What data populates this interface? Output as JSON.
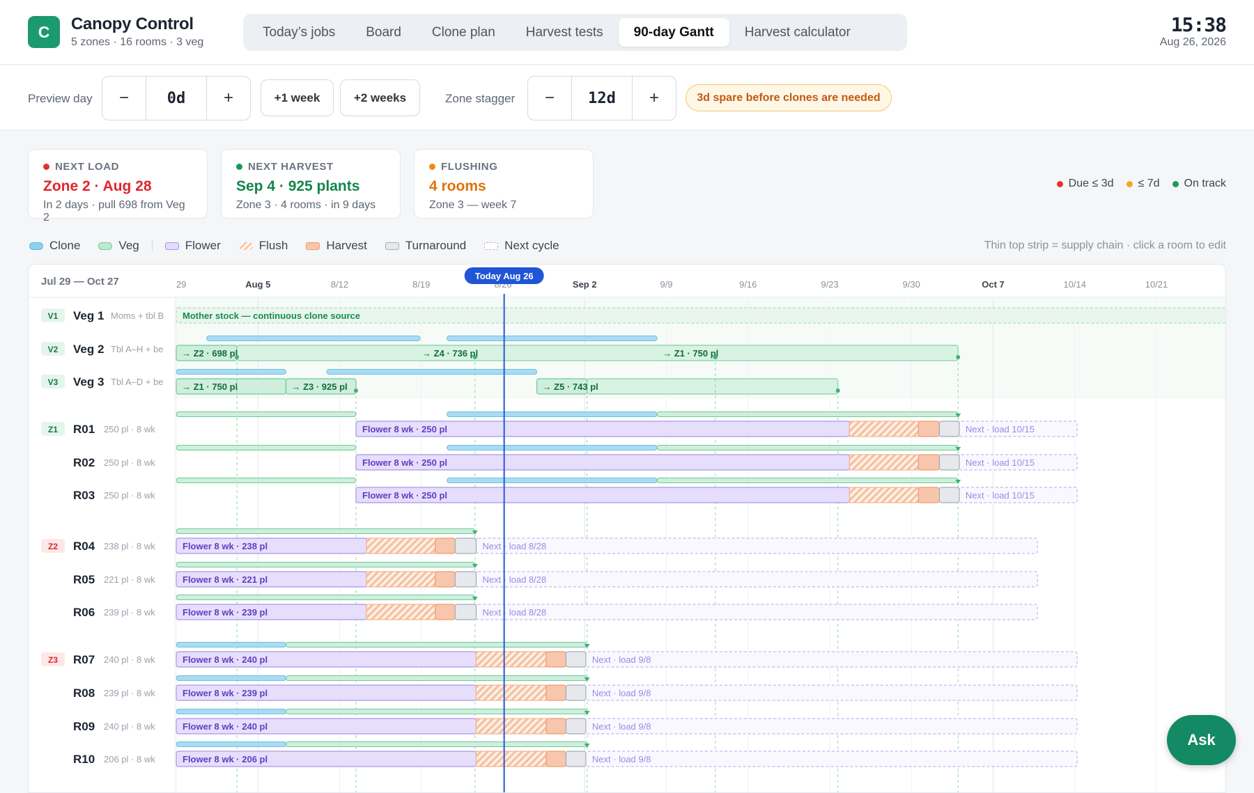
{
  "app": {
    "logo_letter": "C",
    "title": "Canopy Control",
    "subtitle": "5 zones · 16 rooms · 3 veg"
  },
  "tabs": [
    {
      "label": "Today’s jobs",
      "active": false
    },
    {
      "label": "Board",
      "active": false
    },
    {
      "label": "Clone plan",
      "active": false
    },
    {
      "label": "Harvest tests",
      "active": false
    },
    {
      "label": "90-day Gantt",
      "active": true
    },
    {
      "label": "Harvest calculator",
      "active": false
    }
  ],
  "clock": {
    "time": "15:38",
    "date": "Aug 26, 2026"
  },
  "toolbar": {
    "preview_label": "Preview day",
    "preview_value": "0d",
    "minus": "−",
    "plus": "+",
    "plus1w": "+1 week",
    "plus2w": "+2 weeks",
    "stagger_label": "Zone stagger",
    "stagger_value": "12d",
    "spare_badge": "3d spare before clones are needed"
  },
  "cards": [
    {
      "key": "NEXT LOAD",
      "value": "Zone 2 · Aug 28",
      "detail": "In 2 days · pull 698 from Veg 2",
      "color": "#e5322d"
    },
    {
      "key": "NEXT HARVEST",
      "value": "Sep 4 · 925 plants",
      "detail": "Zone 3 · 4 rooms · in 9 days",
      "color": "#1a9a5a"
    },
    {
      "key": "FLUSHING",
      "value": "4 rooms",
      "detail": "Zone 3 — week 7",
      "color": "#f08a12"
    }
  ],
  "status_legend": [
    {
      "label": "Due ≤ 3d",
      "color": "#e5322d"
    },
    {
      "label": "≤ 7d",
      "color": "#f5a623"
    },
    {
      "label": "On track",
      "color": "#1a9a5a"
    }
  ],
  "legend": {
    "clone": "Clone",
    "veg": "Veg",
    "flower": "Flower",
    "flush": "Flush",
    "harvest": "Harvest",
    "turnaround": "Turnaround",
    "next_cycle": "Next cycle",
    "hint": "Thin top strip = supply chain · click a room to edit"
  },
  "gantt": {
    "range_label": "Jul 29 — Oct 27",
    "today_label": "Today Aug 26",
    "ticks": [
      {
        "label": "29",
        "day": 0,
        "major": false
      },
      {
        "label": "Aug 5",
        "day": 7,
        "major": true
      },
      {
        "label": "8/12",
        "day": 14,
        "major": false
      },
      {
        "label": "8/19",
        "day": 21,
        "major": false
      },
      {
        "label": "8/26",
        "day": 28,
        "major": false
      },
      {
        "label": "Sep 2",
        "day": 35,
        "major": true
      },
      {
        "label": "9/9",
        "day": 42,
        "major": false
      },
      {
        "label": "9/16",
        "day": 49,
        "major": false
      },
      {
        "label": "9/23",
        "day": 56,
        "major": false
      },
      {
        "label": "9/30",
        "day": 63,
        "major": false
      },
      {
        "label": "Oct 7",
        "day": 70,
        "major": true
      },
      {
        "label": "10/14",
        "day": 77,
        "major": false
      },
      {
        "label": "10/21",
        "day": 84,
        "major": false
      }
    ],
    "mother_label": "Mother stock — continuous clone source",
    "veg_rows": [
      {
        "badge": "V1",
        "name": "Veg 1",
        "note": "Moms + tbl B"
      },
      {
        "badge": "V2",
        "name": "Veg 2",
        "note": "Tbl A–H + be",
        "labels": [
          "→ Z2 · 698 pl",
          "→ Z4 · 736 pl",
          "→ Z1 · 750 pl"
        ]
      },
      {
        "badge": "V3",
        "name": "Veg 3",
        "note": "Tbl A–D + be",
        "labels": [
          "→ Z1 · 750 pl",
          "→ Z3 · 925 pl",
          "→ Z5 · 743 pl"
        ]
      }
    ],
    "zones": [
      {
        "badge": "Z1",
        "badge_type": "green",
        "next_label": "Next · load 10/15",
        "rooms": [
          {
            "name": "R01",
            "meta": "250 pl · 8 wk",
            "bar": "Flower 8 wk · 250 pl"
          },
          {
            "name": "R02",
            "meta": "250 pl · 8 wk",
            "bar": "Flower 8 wk · 250 pl"
          },
          {
            "name": "R03",
            "meta": "250 pl · 8 wk",
            "bar": "Flower 8 wk · 250 pl"
          }
        ]
      },
      {
        "badge": "Z2",
        "badge_type": "red",
        "next_label": "Next · load 8/28",
        "rooms": [
          {
            "name": "R04",
            "meta": "238 pl · 8 wk",
            "bar": "Flower 8 wk · 238 pl"
          },
          {
            "name": "R05",
            "meta": "221 pl · 8 wk",
            "bar": "Flower 8 wk · 221 pl"
          },
          {
            "name": "R06",
            "meta": "239 pl · 8 wk",
            "bar": "Flower 8 wk · 239 pl"
          }
        ]
      },
      {
        "badge": "Z3",
        "badge_type": "red",
        "next_label": "Next · load 9/8",
        "rooms": [
          {
            "name": "R07",
            "meta": "240 pl · 8 wk",
            "bar": "Flower 8 wk · 240 pl"
          },
          {
            "name": "R08",
            "meta": "239 pl · 8 wk",
            "bar": "Flower 8 wk · 239 pl"
          },
          {
            "name": "R09",
            "meta": "240 pl · 8 wk",
            "bar": "Flower 8 wk · 240 pl"
          },
          {
            "name": "R10",
            "meta": "206 pl · 8 wk",
            "bar": "Flower 8 wk · 206 pl"
          }
        ]
      }
    ]
  },
  "ask_label": "Ask",
  "colors": {
    "accent": "#1a9a6e",
    "today": "#2a59d6",
    "clone": "#8fd0ee",
    "veg": "#bfe9cf",
    "flower": "#e4dcfb",
    "harvest": "#f8c6ad",
    "turn": "#e6e8ec"
  }
}
